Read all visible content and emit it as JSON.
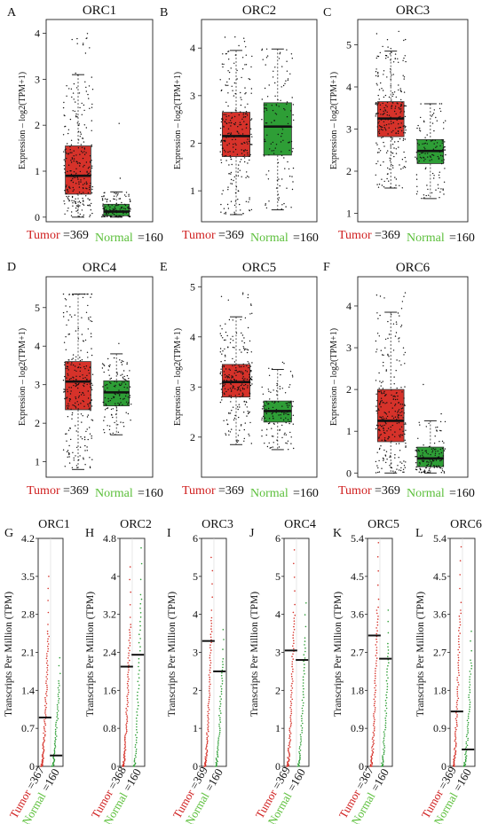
{
  "figure": {
    "tumor_color": "#d6322a",
    "normal_color": "#2e9e36",
    "normal_label_color": "#5bbf3a",
    "tumor_label_color": "#d02020"
  },
  "chart_data": [
    {
      "panel": "A",
      "type": "box",
      "title": "ORC1",
      "ylabel": "Expression – log2(TPM+1)",
      "ylim": [
        -0.1,
        4.3
      ],
      "yticks": [
        "0",
        "1",
        "2",
        "3",
        "4"
      ],
      "groups": [
        {
          "name": "Tumor",
          "n": "369",
          "q1": 0.5,
          "median": 0.9,
          "q3": 1.55,
          "whisker_low": 0.0,
          "whisker_high": 3.1,
          "max": 4.1
        },
        {
          "name": "Normal",
          "n": "160",
          "q1": 0.03,
          "median": 0.12,
          "q3": 0.28,
          "whisker_low": 0.0,
          "whisker_high": 0.55,
          "max": 2.1
        }
      ]
    },
    {
      "panel": "B",
      "type": "box",
      "title": "ORC2",
      "ylabel": "Expression – log2(TPM+1)",
      "ylim": [
        0.35,
        4.6
      ],
      "yticks": [
        "1",
        "2",
        "3",
        "4"
      ],
      "groups": [
        {
          "name": "Tumor",
          "n": "369",
          "q1": 1.72,
          "median": 2.15,
          "q3": 2.65,
          "whisker_low": 0.5,
          "whisker_high": 3.95,
          "max": 4.4
        },
        {
          "name": "Normal",
          "n": "160",
          "q1": 1.75,
          "median": 2.35,
          "q3": 2.85,
          "whisker_low": 0.6,
          "whisker_high": 3.98,
          "max": 3.98
        }
      ]
    },
    {
      "panel": "C",
      "type": "box",
      "title": "ORC3",
      "ylabel": "Expression – log2(TPM+1)",
      "ylim": [
        0.8,
        5.6
      ],
      "yticks": [
        "1",
        "2",
        "3",
        "4",
        "5"
      ],
      "groups": [
        {
          "name": "Tumor",
          "n": "369",
          "q1": 2.82,
          "median": 3.25,
          "q3": 3.65,
          "whisker_low": 1.6,
          "whisker_high": 4.85,
          "max": 5.4
        },
        {
          "name": "Normal",
          "n": "160",
          "q1": 2.18,
          "median": 2.48,
          "q3": 2.75,
          "whisker_low": 1.35,
          "whisker_high": 3.6,
          "max": 3.6
        }
      ]
    },
    {
      "panel": "D",
      "type": "box",
      "title": "ORC4",
      "ylabel": "Expression – log2(TPM+1)",
      "ylim": [
        0.6,
        5.8
      ],
      "yticks": [
        "1",
        "2",
        "3",
        "4",
        "5"
      ],
      "groups": [
        {
          "name": "Tumor",
          "n": "369",
          "q1": 2.35,
          "median": 3.08,
          "q3": 3.6,
          "whisker_low": 0.8,
          "whisker_high": 5.35,
          "max": 5.35
        },
        {
          "name": "Normal",
          "n": "160",
          "q1": 2.45,
          "median": 2.8,
          "q3": 3.1,
          "whisker_low": 1.7,
          "whisker_high": 3.8,
          "max": 4.4
        }
      ]
    },
    {
      "panel": "E",
      "type": "box",
      "title": "ORC5",
      "ylabel": "Expression – log2(TPM+1)",
      "ylim": [
        1.2,
        5.2
      ],
      "yticks": [
        "2",
        "3",
        "4",
        "5"
      ],
      "groups": [
        {
          "name": "Tumor",
          "n": "369",
          "q1": 2.8,
          "median": 3.1,
          "q3": 3.45,
          "whisker_low": 1.85,
          "whisker_high": 4.4,
          "max": 4.9
        },
        {
          "name": "Normal",
          "n": "160",
          "q1": 2.3,
          "median": 2.52,
          "q3": 2.72,
          "whisker_low": 1.75,
          "whisker_high": 3.35,
          "max": 3.55
        }
      ]
    },
    {
      "panel": "F",
      "type": "box",
      "title": "ORC6",
      "ylabel": "Expression – log2(TPM+1)",
      "ylim": [
        -0.1,
        4.7
      ],
      "yticks": [
        "0",
        "1",
        "2",
        "3",
        "4"
      ],
      "groups": [
        {
          "name": "Tumor",
          "n": "369",
          "q1": 0.75,
          "median": 1.25,
          "q3": 2.0,
          "whisker_low": 0.0,
          "whisker_high": 3.85,
          "max": 4.5
        },
        {
          "name": "Normal",
          "n": "160",
          "q1": 0.15,
          "median": 0.35,
          "q3": 0.62,
          "whisker_low": 0.0,
          "whisker_high": 1.25,
          "max": 3.0
        }
      ]
    },
    {
      "panel": "G",
      "type": "dot",
      "title": "ORC1",
      "ylabel": "Transcripts Per Million (TPM)",
      "ylim": [
        0,
        4.2
      ],
      "yticks": [
        "0",
        "0.7",
        "1.4",
        "2.1",
        "2.8",
        "3.5",
        "4.2"
      ],
      "tumor_n": "367",
      "normal_n": "160",
      "tumor_median": 0.9,
      "normal_median": 0.2,
      "tumor_max": 3.5,
      "normal_max": 2.0
    },
    {
      "panel": "H",
      "type": "dot",
      "title": "ORC2",
      "ylabel": "Transcripts Per Million (TPM)",
      "ylim": [
        0,
        4.8
      ],
      "yticks": [
        "0",
        "0.8",
        "1.6",
        "2.4",
        "3.2",
        "4",
        "4.8"
      ],
      "tumor_n": "368",
      "normal_n": "160",
      "tumor_median": 2.1,
      "normal_median": 2.35,
      "tumor_max": 4.2,
      "normal_max": 4.6
    },
    {
      "panel": "I",
      "type": "dot",
      "title": "ORC3",
      "ylabel": "Transcripts Per Million (TPM)",
      "ylim": [
        0,
        6
      ],
      "yticks": [
        "0",
        "1",
        "2",
        "3",
        "4",
        "5",
        "6"
      ],
      "tumor_n": "369",
      "normal_n": "160",
      "tumor_median": 3.3,
      "normal_median": 2.5,
      "tumor_max": 5.5,
      "normal_max": 3.6
    },
    {
      "panel": "J",
      "type": "dot",
      "title": "ORC4",
      "ylabel": "Transcripts Per Million (TPM)",
      "ylim": [
        0,
        6
      ],
      "yticks": [
        "0",
        "1",
        "2",
        "3",
        "4",
        "5",
        "6"
      ],
      "tumor_n": "369",
      "normal_n": "160",
      "tumor_median": 3.05,
      "normal_median": 2.8,
      "tumor_max": 5.7,
      "normal_max": 4.3
    },
    {
      "panel": "K",
      "type": "dot",
      "title": "ORC5",
      "ylabel": "Transcripts Per Million (TPM)",
      "ylim": [
        0,
        5.4
      ],
      "yticks": [
        "0",
        "0.9",
        "1.8",
        "2.7",
        "3.6",
        "4.5",
        "5.4"
      ],
      "tumor_n": "367",
      "normal_n": "160",
      "tumor_median": 3.1,
      "normal_median": 2.55,
      "tumor_max": 5.3,
      "normal_max": 3.7
    },
    {
      "panel": "L",
      "type": "dot",
      "title": "ORC6",
      "ylabel": "Transcripts Per Million (TPM)",
      "ylim": [
        0,
        5.4
      ],
      "yticks": [
        "0",
        "0.9",
        "1.8",
        "2.7",
        "3.6",
        "4.5",
        "5.4"
      ],
      "tumor_n": "369",
      "normal_n": "160",
      "tumor_median": 1.3,
      "normal_median": 0.4,
      "tumor_max": 5.2,
      "normal_max": 3.2
    }
  ]
}
